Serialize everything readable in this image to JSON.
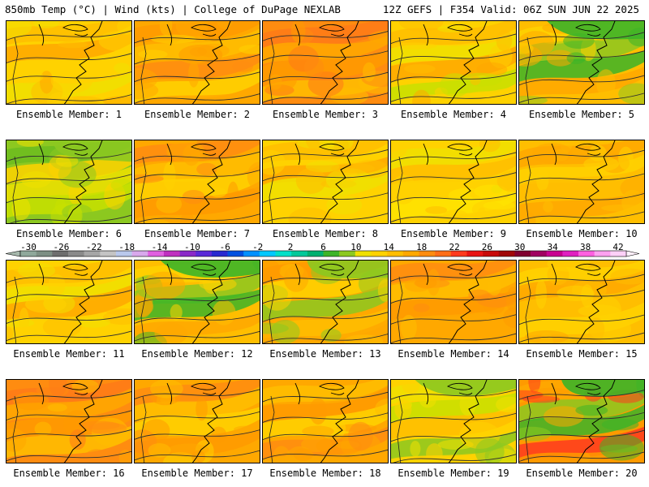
{
  "header": {
    "left": "850mb Temp (°C) | Wind (kts) | College of DuPage NEXLAB",
    "right": "12Z GEFS | F354 Valid: 06Z SUN JUN 22 2025"
  },
  "members": [
    {
      "label": "Ensemble Member: 1",
      "palette": [
        "#ffd200",
        "#ffbe00",
        "#ffa800",
        "#ffd200",
        "#f0e000"
      ]
    },
    {
      "label": "Ensemble Member: 2",
      "palette": [
        "#ffa800",
        "#ff9a00",
        "#ffbe00",
        "#ff8c10",
        "#ffd200"
      ]
    },
    {
      "label": "Ensemble Member: 3",
      "palette": [
        "#ff8c10",
        "#ff7a18",
        "#ffa800",
        "#ff9a00",
        "#ffbe00"
      ]
    },
    {
      "label": "Ensemble Member: 4",
      "palette": [
        "#ffd200",
        "#ffbe00",
        "#f0e000",
        "#ffa800",
        "#c8e000"
      ]
    },
    {
      "label": "Ensemble Member: 5",
      "palette": [
        "#ffbe00",
        "#ffd200",
        "#8cc820",
        "#3cb428",
        "#ffa800"
      ]
    },
    {
      "label": "Ensemble Member: 6",
      "palette": [
        "#8cc820",
        "#6cbc20",
        "#ffd200",
        "#f0e000",
        "#c8e000"
      ]
    },
    {
      "label": "Ensemble Member: 7",
      "palette": [
        "#ffa800",
        "#ff8c10",
        "#ffbe00",
        "#ffd200",
        "#ff9a00"
      ]
    },
    {
      "label": "Ensemble Member: 8",
      "palette": [
        "#ffd200",
        "#ffbe00",
        "#ffa800",
        "#f0e000",
        "#ffd200"
      ]
    },
    {
      "label": "Ensemble Member: 9",
      "palette": [
        "#ffd200",
        "#f0e000",
        "#ffbe00",
        "#ffd200",
        "#ffe400"
      ]
    },
    {
      "label": "Ensemble Member: 10",
      "palette": [
        "#ffbe00",
        "#ffa800",
        "#ffd200",
        "#ffbe00",
        "#ffa800"
      ]
    },
    {
      "label": "Ensemble Member: 11",
      "palette": [
        "#ffd200",
        "#ffbe00",
        "#f0e000",
        "#ffa800",
        "#ffd200"
      ]
    },
    {
      "label": "Ensemble Member: 12",
      "palette": [
        "#ffbe00",
        "#ffd200",
        "#8cc820",
        "#3cb428",
        "#ffa800"
      ]
    },
    {
      "label": "Ensemble Member: 13",
      "palette": [
        "#ffa800",
        "#ff9a00",
        "#ffd200",
        "#8cc820",
        "#ffbe00"
      ]
    },
    {
      "label": "Ensemble Member: 14",
      "palette": [
        "#ffa800",
        "#ff8c10",
        "#ffbe00",
        "#ff9a00",
        "#ffa800"
      ]
    },
    {
      "label": "Ensemble Member: 15",
      "palette": [
        "#ffbe00",
        "#ffd200",
        "#ffa800",
        "#ffbe00",
        "#ffd200"
      ]
    },
    {
      "label": "Ensemble Member: 16",
      "palette": [
        "#ff8c10",
        "#ff7a18",
        "#ffa800",
        "#ff9a00",
        "#ffbe00"
      ]
    },
    {
      "label": "Ensemble Member: 17",
      "palette": [
        "#ffa800",
        "#ff8c10",
        "#ffbe00",
        "#ffd200",
        "#ff9a00"
      ]
    },
    {
      "label": "Ensemble Member: 18",
      "palette": [
        "#ffa800",
        "#ffbe00",
        "#ff9a00",
        "#ffd200",
        "#ff8c10"
      ]
    },
    {
      "label": "Ensemble Member: 19",
      "palette": [
        "#ffd200",
        "#f0e000",
        "#c8e000",
        "#ffbe00",
        "#8cc820"
      ]
    },
    {
      "label": "Ensemble Member: 20",
      "palette": [
        "#ff9a00",
        "#ffa800",
        "#8cc820",
        "#3cb428",
        "#ff3a1e"
      ]
    }
  ],
  "colorbar": {
    "labels": [
      "-30",
      "-26",
      "-22",
      "-18",
      "-14",
      "-10",
      "-6",
      "-2",
      "2",
      "6",
      "10",
      "14",
      "18",
      "22",
      "26",
      "30",
      "34",
      "38",
      "42"
    ],
    "colors": [
      "#8fa89b",
      "#7d8f84",
      "#6e6e6e",
      "#8a8a8a",
      "#a6a6a6",
      "#c4c4c4",
      "#b9c8ec",
      "#d8a8ec",
      "#e060e0",
      "#c030c0",
      "#8a28c8",
      "#5a28d8",
      "#2828d0",
      "#0050e0",
      "#0090ff",
      "#00c8ff",
      "#00e0c8",
      "#00c89a",
      "#00b070",
      "#3cb428",
      "#8cc820",
      "#f0e000",
      "#ffd200",
      "#ffbe00",
      "#ffa800",
      "#ff8c10",
      "#ff6e18",
      "#ff3a1e",
      "#e81414",
      "#c80a0a",
      "#a00808",
      "#800030",
      "#a00060",
      "#c80090",
      "#e020c0",
      "#ff60e0",
      "#ffa0f0",
      "#ffd0f8"
    ]
  }
}
